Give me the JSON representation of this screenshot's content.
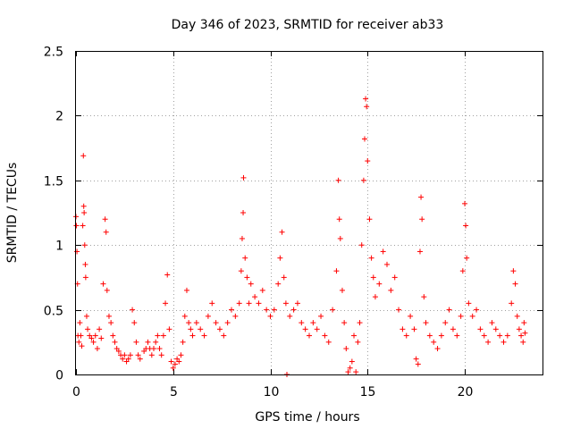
{
  "chart_data": {
    "type": "scatter",
    "title": "Day 346 of 2023, SRMTID for receiver ab33",
    "xlabel": "GPS time / hours",
    "ylabel": "SRMTID / TECUs",
    "xlim": [
      0,
      24
    ],
    "ylim": [
      0,
      2.5
    ],
    "xticks": [
      "0",
      "5",
      "10",
      "15",
      "20"
    ],
    "yticks": [
      "0",
      "0.5",
      "1",
      "1.5",
      "2",
      "2.5"
    ],
    "grid": true,
    "marker": "+",
    "color": "#ff0000",
    "series": [
      {
        "name": "SRMTID",
        "points": [
          [
            0.0,
            1.22
          ],
          [
            0.02,
            1.15
          ],
          [
            0.05,
            0.95
          ],
          [
            0.08,
            0.7
          ],
          [
            0.1,
            0.3
          ],
          [
            0.15,
            0.25
          ],
          [
            0.2,
            0.4
          ],
          [
            0.25,
            0.3
          ],
          [
            0.3,
            0.22
          ],
          [
            0.35,
            1.15
          ],
          [
            0.38,
            1.69
          ],
          [
            0.4,
            1.3
          ],
          [
            0.42,
            1.25
          ],
          [
            0.45,
            1.0
          ],
          [
            0.48,
            0.85
          ],
          [
            0.5,
            0.75
          ],
          [
            0.55,
            0.45
          ],
          [
            0.6,
            0.35
          ],
          [
            0.7,
            0.3
          ],
          [
            0.8,
            0.28
          ],
          [
            0.9,
            0.25
          ],
          [
            1.0,
            0.3
          ],
          [
            1.1,
            0.2
          ],
          [
            1.2,
            0.35
          ],
          [
            1.3,
            0.28
          ],
          [
            1.4,
            0.7
          ],
          [
            1.5,
            1.2
          ],
          [
            1.55,
            1.1
          ],
          [
            1.6,
            0.65
          ],
          [
            1.7,
            0.45
          ],
          [
            1.8,
            0.4
          ],
          [
            1.9,
            0.3
          ],
          [
            2.0,
            0.25
          ],
          [
            2.1,
            0.2
          ],
          [
            2.2,
            0.18
          ],
          [
            2.3,
            0.15
          ],
          [
            2.4,
            0.12
          ],
          [
            2.5,
            0.15
          ],
          [
            2.6,
            0.1
          ],
          [
            2.7,
            0.12
          ],
          [
            2.8,
            0.15
          ],
          [
            2.9,
            0.5
          ],
          [
            3.0,
            0.4
          ],
          [
            3.1,
            0.25
          ],
          [
            3.2,
            0.15
          ],
          [
            3.3,
            0.12
          ],
          [
            3.5,
            0.18
          ],
          [
            3.6,
            0.2
          ],
          [
            3.7,
            0.25
          ],
          [
            3.8,
            0.2
          ],
          [
            3.9,
            0.15
          ],
          [
            4.0,
            0.2
          ],
          [
            4.1,
            0.25
          ],
          [
            4.2,
            0.3
          ],
          [
            4.3,
            0.2
          ],
          [
            4.4,
            0.15
          ],
          [
            4.5,
            0.3
          ],
          [
            4.6,
            0.55
          ],
          [
            4.7,
            0.77
          ],
          [
            4.8,
            0.35
          ],
          [
            4.9,
            0.1
          ],
          [
            5.0,
            0.05
          ],
          [
            5.1,
            0.08
          ],
          [
            5.2,
            0.12
          ],
          [
            5.3,
            0.1
          ],
          [
            5.4,
            0.15
          ],
          [
            5.5,
            0.25
          ],
          [
            5.6,
            0.45
          ],
          [
            5.7,
            0.65
          ],
          [
            5.8,
            0.4
          ],
          [
            5.9,
            0.35
          ],
          [
            6.0,
            0.3
          ],
          [
            6.2,
            0.4
          ],
          [
            6.4,
            0.35
          ],
          [
            6.6,
            0.3
          ],
          [
            6.8,
            0.45
          ],
          [
            7.0,
            0.55
          ],
          [
            7.2,
            0.4
          ],
          [
            7.4,
            0.35
          ],
          [
            7.6,
            0.3
          ],
          [
            7.8,
            0.4
          ],
          [
            8.0,
            0.5
          ],
          [
            8.2,
            0.45
          ],
          [
            8.4,
            0.55
          ],
          [
            8.5,
            0.8
          ],
          [
            8.55,
            1.05
          ],
          [
            8.6,
            1.25
          ],
          [
            8.62,
            1.52
          ],
          [
            8.7,
            0.9
          ],
          [
            8.8,
            0.75
          ],
          [
            8.9,
            0.55
          ],
          [
            9.0,
            0.7
          ],
          [
            9.2,
            0.6
          ],
          [
            9.4,
            0.55
          ],
          [
            9.6,
            0.65
          ],
          [
            9.8,
            0.5
          ],
          [
            10.0,
            0.45
          ],
          [
            10.2,
            0.5
          ],
          [
            10.4,
            0.7
          ],
          [
            10.5,
            0.9
          ],
          [
            10.6,
            1.1
          ],
          [
            10.7,
            0.75
          ],
          [
            10.8,
            0.55
          ],
          [
            10.85,
            0.0
          ],
          [
            11.0,
            0.45
          ],
          [
            11.2,
            0.5
          ],
          [
            11.4,
            0.55
          ],
          [
            11.6,
            0.4
          ],
          [
            11.8,
            0.35
          ],
          [
            12.0,
            0.3
          ],
          [
            12.2,
            0.4
          ],
          [
            12.4,
            0.35
          ],
          [
            12.6,
            0.45
          ],
          [
            12.8,
            0.3
          ],
          [
            13.0,
            0.25
          ],
          [
            13.2,
            0.5
          ],
          [
            13.4,
            0.8
          ],
          [
            13.5,
            1.5
          ],
          [
            13.55,
            1.2
          ],
          [
            13.6,
            1.05
          ],
          [
            13.7,
            0.65
          ],
          [
            13.8,
            0.4
          ],
          [
            13.9,
            0.2
          ],
          [
            14.0,
            0.02
          ],
          [
            14.1,
            0.05
          ],
          [
            14.2,
            0.1
          ],
          [
            14.3,
            0.3
          ],
          [
            14.4,
            0.02
          ],
          [
            14.5,
            0.25
          ],
          [
            14.6,
            0.4
          ],
          [
            14.7,
            1.0
          ],
          [
            14.8,
            1.5
          ],
          [
            14.85,
            1.82
          ],
          [
            14.9,
            2.13
          ],
          [
            14.95,
            2.07
          ],
          [
            15.0,
            1.65
          ],
          [
            15.1,
            1.2
          ],
          [
            15.2,
            0.9
          ],
          [
            15.3,
            0.75
          ],
          [
            15.4,
            0.6
          ],
          [
            15.6,
            0.7
          ],
          [
            15.8,
            0.95
          ],
          [
            16.0,
            0.85
          ],
          [
            16.2,
            0.65
          ],
          [
            16.4,
            0.75
          ],
          [
            16.6,
            0.5
          ],
          [
            16.8,
            0.35
          ],
          [
            17.0,
            0.3
          ],
          [
            17.2,
            0.45
          ],
          [
            17.4,
            0.35
          ],
          [
            17.5,
            0.12
          ],
          [
            17.6,
            0.08
          ],
          [
            17.7,
            0.95
          ],
          [
            17.75,
            1.37
          ],
          [
            17.8,
            1.2
          ],
          [
            17.9,
            0.6
          ],
          [
            18.0,
            0.4
          ],
          [
            18.2,
            0.3
          ],
          [
            18.4,
            0.25
          ],
          [
            18.6,
            0.2
          ],
          [
            18.8,
            0.3
          ],
          [
            19.0,
            0.4
          ],
          [
            19.2,
            0.5
          ],
          [
            19.4,
            0.35
          ],
          [
            19.6,
            0.3
          ],
          [
            19.8,
            0.45
          ],
          [
            19.9,
            0.8
          ],
          [
            20.0,
            1.32
          ],
          [
            20.05,
            1.15
          ],
          [
            20.1,
            0.9
          ],
          [
            20.2,
            0.55
          ],
          [
            20.4,
            0.45
          ],
          [
            20.6,
            0.5
          ],
          [
            20.8,
            0.35
          ],
          [
            21.0,
            0.3
          ],
          [
            21.2,
            0.25
          ],
          [
            21.4,
            0.4
          ],
          [
            21.6,
            0.35
          ],
          [
            21.8,
            0.3
          ],
          [
            22.0,
            0.25
          ],
          [
            22.2,
            0.3
          ],
          [
            22.4,
            0.55
          ],
          [
            22.5,
            0.8
          ],
          [
            22.6,
            0.7
          ],
          [
            22.7,
            0.45
          ],
          [
            22.8,
            0.35
          ],
          [
            22.9,
            0.3
          ],
          [
            23.0,
            0.25
          ],
          [
            23.05,
            0.4
          ],
          [
            23.1,
            0.32
          ]
        ]
      }
    ]
  }
}
